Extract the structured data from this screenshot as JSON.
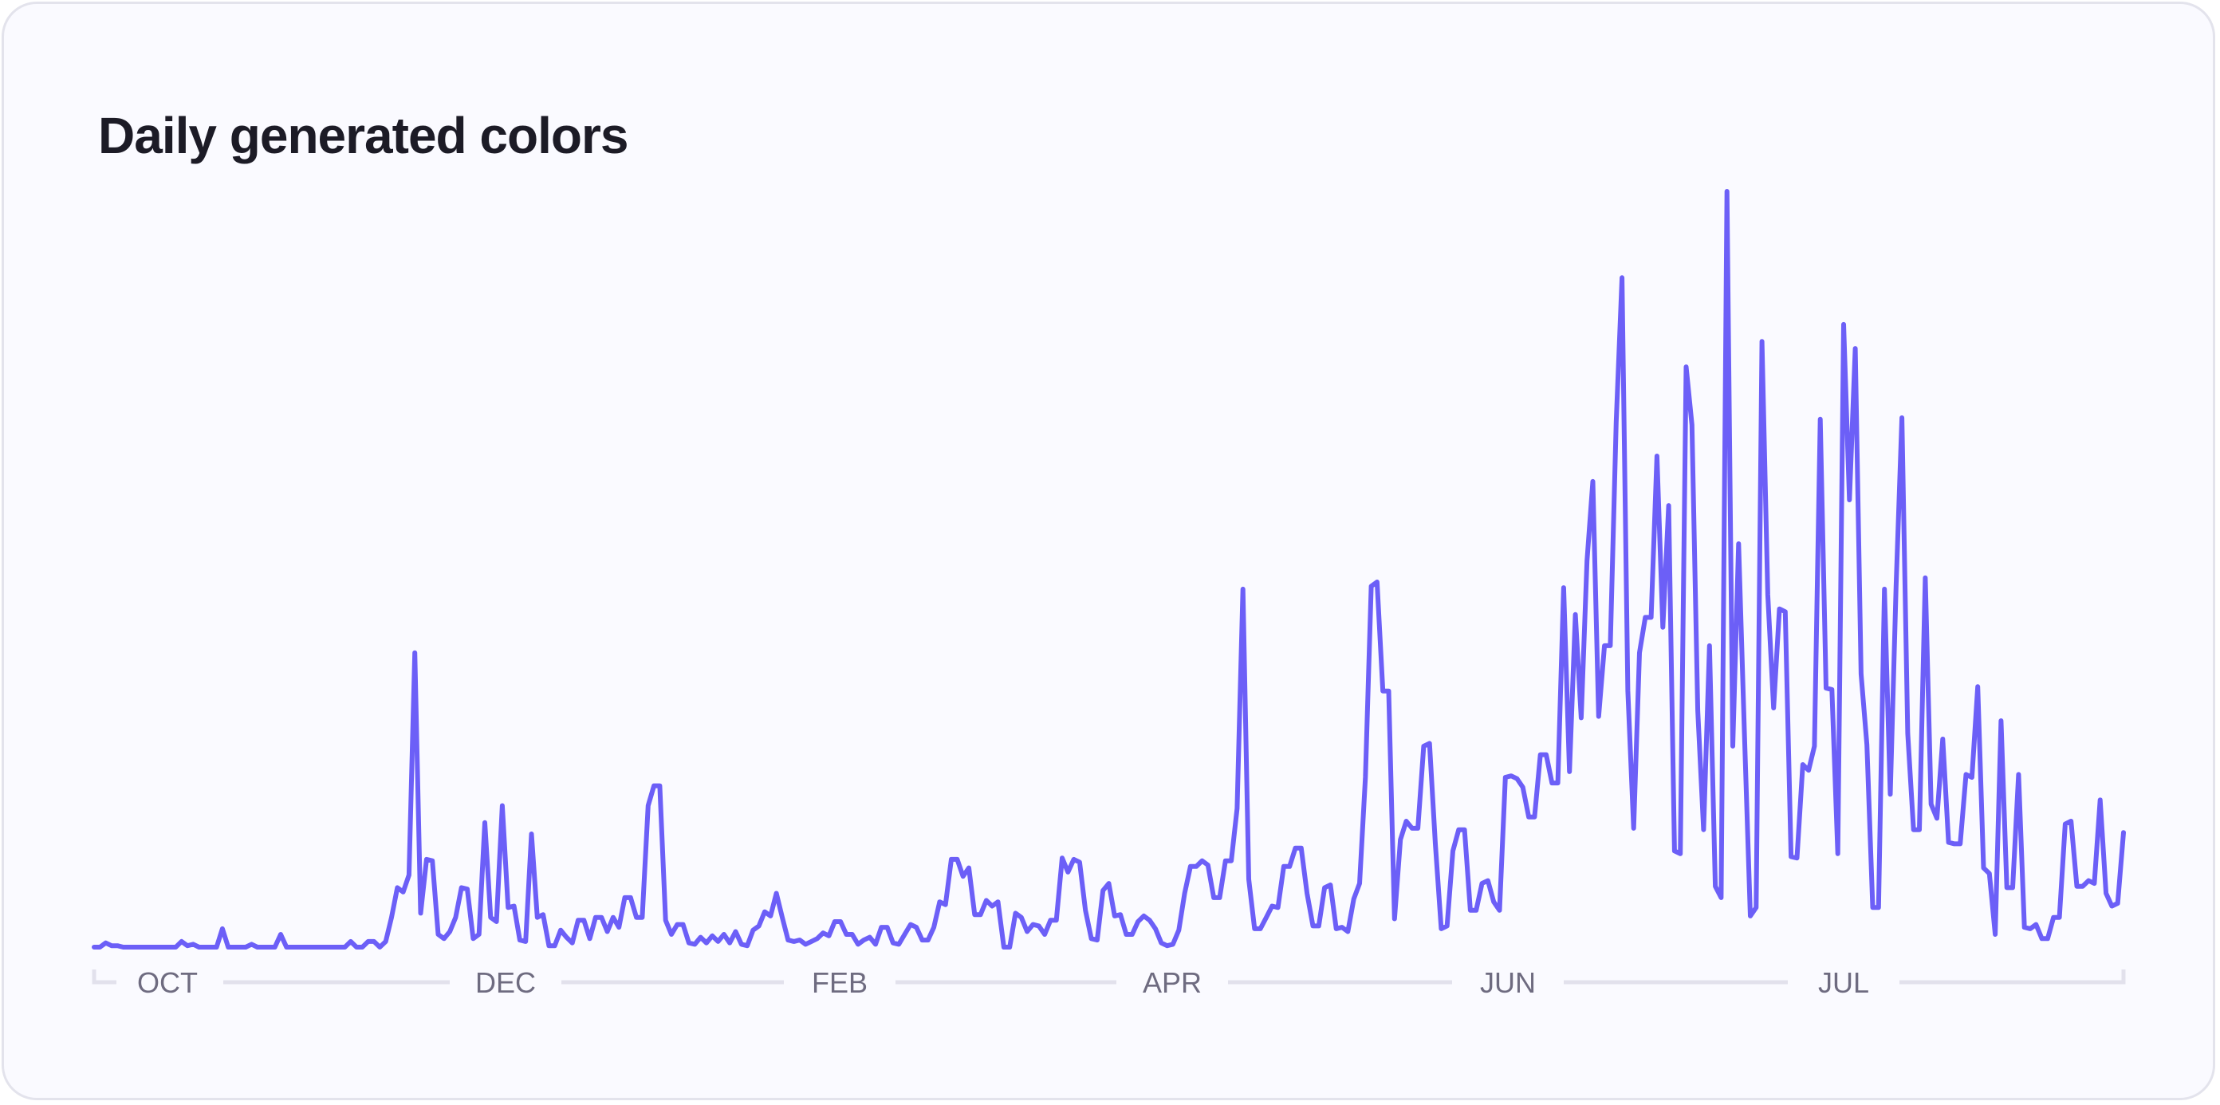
{
  "chart_data": {
    "type": "line",
    "title": "Daily generated colors",
    "xlabel": "",
    "ylabel": "",
    "x_tick_labels": [
      "OCT",
      "DEC",
      "FEB",
      "APR",
      "JUN",
      "JUL"
    ],
    "grid": false,
    "legend": "none",
    "line_color": "#6c5ff7",
    "axis_color": "#e2e1ec",
    "ylim": [
      0,
      534
    ],
    "values": [
      0,
      0,
      3,
      1,
      1,
      0,
      0,
      0,
      0,
      0,
      0,
      0,
      0,
      0,
      0,
      4,
      1,
      2,
      0,
      0,
      0,
      0,
      13,
      0,
      0,
      0,
      0,
      2,
      0,
      0,
      0,
      0,
      9,
      0,
      0,
      0,
      0,
      0,
      0,
      0,
      0,
      0,
      0,
      0,
      4,
      0,
      0,
      4,
      4,
      0,
      4,
      21,
      42,
      39,
      51,
      208,
      24,
      62,
      61,
      9,
      6,
      11,
      21,
      42,
      41,
      6,
      9,
      88,
      21,
      18,
      100,
      28,
      29,
      5,
      4,
      80,
      21,
      23,
      1,
      1,
      12,
      7,
      3,
      19,
      19,
      6,
      21,
      21,
      11,
      21,
      14,
      35,
      35,
      21,
      21,
      100,
      114,
      114,
      19,
      9,
      16,
      16,
      3,
      2,
      7,
      3,
      8,
      4,
      9,
      3,
      11,
      2,
      1,
      12,
      15,
      25,
      22,
      38,
      21,
      5,
      4,
      5,
      2,
      4,
      6,
      10,
      8,
      18,
      18,
      9,
      9,
      2,
      5,
      7,
      2,
      14,
      14,
      3,
      2,
      9,
      16,
      14,
      5,
      5,
      14,
      32,
      30,
      62,
      62,
      50,
      56,
      23,
      23,
      33,
      29,
      32,
      0,
      0,
      24,
      21,
      11,
      16,
      15,
      9,
      19,
      19,
      63,
      53,
      62,
      60,
      26,
      6,
      5,
      40,
      45,
      22,
      23,
      9,
      9,
      18,
      22,
      19,
      13,
      3,
      1,
      2,
      12,
      38,
      57,
      57,
      61,
      58,
      35,
      35,
      61,
      61,
      98,
      253,
      48,
      13,
      13,
      21,
      29,
      28,
      57,
      57,
      70,
      70,
      38,
      15,
      15,
      42,
      44,
      13,
      14,
      11,
      34,
      45,
      120,
      255,
      258,
      181,
      181,
      20,
      76,
      89,
      84,
      84,
      142,
      144,
      73,
      13,
      15,
      68,
      83,
      83,
      26,
      26,
      45,
      47,
      32,
      26,
      120,
      121,
      119,
      113,
      92,
      92,
      136,
      136,
      116,
      116,
      254,
      124,
      235,
      162,
      273,
      329,
      163,
      213,
      213,
      371,
      473,
      181,
      84,
      208,
      233,
      233,
      347,
      226,
      312,
      68,
      66,
      410,
      369,
      167,
      83,
      213,
      43,
      35,
      534,
      142,
      285,
      151,
      22,
      28,
      428,
      249,
      169,
      239,
      237,
      64,
      63,
      129,
      125,
      142,
      373,
      183,
      182,
      66,
      440,
      316,
      423,
      193,
      143,
      28,
      28,
      253,
      108,
      255,
      374,
      151,
      83,
      83,
      261,
      101,
      91,
      147,
      74,
      73,
      73,
      122,
      120,
      184,
      56,
      52,
      9,
      160,
      42,
      42,
      122,
      14,
      13,
      16,
      6,
      6,
      21,
      21,
      87,
      89,
      43,
      43,
      47,
      45,
      104,
      38,
      29,
      31,
      81
    ]
  }
}
